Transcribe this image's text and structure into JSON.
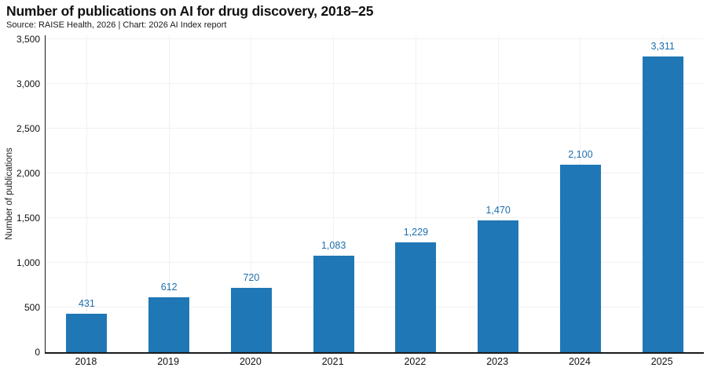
{
  "header": {
    "title": "Number of publications on AI for drug discovery, 2018–25",
    "subtitle": "Source: RAISE Health, 2026 | Chart: 2026 AI Index report"
  },
  "chart_data": {
    "type": "bar",
    "title": "Number of publications on AI for drug discovery, 2018–25",
    "source": "Source: RAISE Health, 2026 | Chart: 2026 AI Index report",
    "categories": [
      "2018",
      "2019",
      "2020",
      "2021",
      "2022",
      "2023",
      "2024",
      "2025"
    ],
    "values": [
      431,
      612,
      720,
      1083,
      1229,
      1470,
      2100,
      3311
    ],
    "value_labels": [
      "431",
      "612",
      "720",
      "1,083",
      "1,229",
      "1,470",
      "2,100",
      "3,311"
    ],
    "xlabel": "",
    "ylabel": "Number of publications",
    "ylim": [
      0,
      3500
    ],
    "y_tick_values": [
      0,
      500,
      1000,
      1500,
      2000,
      2500,
      3000,
      3500
    ],
    "y_tick_labels": [
      "0",
      "500",
      "1,000",
      "1,500",
      "2,000",
      "2,500",
      "3,000",
      "3,500"
    ],
    "grid": true,
    "legend": "none",
    "colors": {
      "bar": "#2077b5",
      "value_label": "#1c6fae",
      "axis": "#1a1a1a",
      "gridline": "#f3f1f1",
      "text": "#111111"
    }
  }
}
